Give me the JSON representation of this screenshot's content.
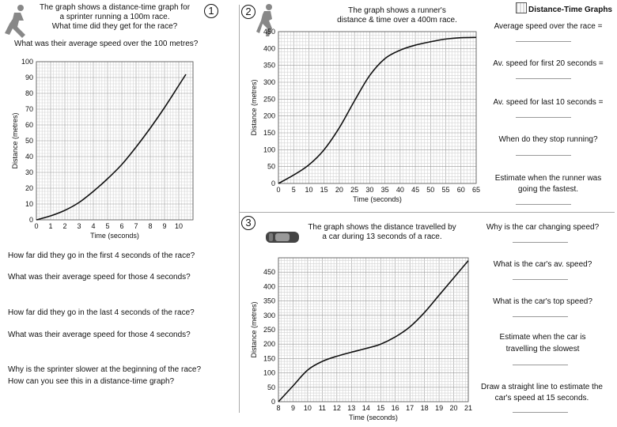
{
  "header": {
    "title": "Distance-Time Graphs",
    "icon": "calculator-icon"
  },
  "q1": {
    "number": "1",
    "intro": [
      "The graph shows a distance-time graph for",
      "a sprinter running a 100m race.",
      "What time did they get for the race?"
    ],
    "q_avg": "What was their average speed over the 100 metres?",
    "questions": [
      "How far did they go in the first 4 seconds of the race?",
      "What was their average speed for those 4 seconds?",
      "How far did they go in the last 4 seconds of the race?",
      "What was their average speed for those 4 seconds?",
      "Why is the sprinter slower at the beginning of the race?",
      "How can you see this in a distance-time graph?"
    ],
    "chart_data": {
      "type": "line",
      "xlabel": "Time (seconds)",
      "ylabel": "Distance (metres)",
      "xlim": [
        0,
        11
      ],
      "ylim": [
        0,
        100
      ],
      "xticks": [
        "0",
        "1",
        "2",
        "3",
        "4",
        "5",
        "6",
        "7",
        "8",
        "9",
        "10"
      ],
      "yticks": [
        "0",
        "10",
        "20",
        "30",
        "40",
        "50",
        "60",
        "70",
        "80",
        "90",
        "100"
      ],
      "x": [
        0,
        1,
        2,
        3,
        4,
        5,
        6,
        7,
        8,
        9,
        10,
        10.5
      ],
      "y": [
        0,
        2.5,
        6,
        11,
        18,
        26,
        35,
        46,
        58,
        71,
        85,
        92
      ]
    }
  },
  "q2": {
    "number": "2",
    "intro": [
      "The graph shows a runner's",
      "distance & time over a 400m race."
    ],
    "questions": [
      "Average speed over the race =",
      "Av. speed for first 20 seconds =",
      "Av. speed for last 10 seconds =",
      "When do they stop running?",
      "Estimate when the runner was",
      "going the fastest."
    ],
    "chart_data": {
      "type": "line",
      "xlabel": "Time (seconds)",
      "ylabel": "Distance (metres)",
      "xlim": [
        0,
        65
      ],
      "ylim": [
        0,
        450
      ],
      "xticks": [
        "0",
        "5",
        "10",
        "15",
        "20",
        "25",
        "30",
        "35",
        "40",
        "45",
        "50",
        "55",
        "60",
        "65"
      ],
      "yticks": [
        "0",
        "50",
        "100",
        "150",
        "200",
        "250",
        "300",
        "350",
        "400",
        "450"
      ],
      "x": [
        0,
        5,
        10,
        15,
        20,
        25,
        30,
        35,
        40,
        45,
        50,
        55,
        60,
        65
      ],
      "y": [
        0,
        25,
        55,
        100,
        165,
        245,
        320,
        370,
        395,
        410,
        420,
        428,
        432,
        433
      ]
    }
  },
  "q3": {
    "number": "3",
    "intro": [
      "The graph shows the distance travelled by",
      "a car during 13 seconds of a race."
    ],
    "questions": [
      "Why is the car changing speed?",
      "What is the car's av. speed?",
      "What is the car's top speed?",
      "Estimate when the car is",
      "travelling the slowest",
      "Draw a straight line to estimate the",
      "car's speed at 15 seconds."
    ],
    "chart_data": {
      "type": "line",
      "xlabel": "Time (seconds)",
      "ylabel": "Distance (metres)",
      "xlim": [
        8,
        21
      ],
      "ylim": [
        0,
        500
      ],
      "xticks": [
        "8",
        "9",
        "10",
        "11",
        "12",
        "13",
        "14",
        "15",
        "16",
        "17",
        "18",
        "19",
        "20",
        "21"
      ],
      "yticks": [
        "0",
        "50",
        "100",
        "150",
        "200",
        "250",
        "300",
        "350",
        "400",
        "450"
      ],
      "x": [
        8,
        9,
        10,
        11,
        12,
        13,
        14,
        15,
        16,
        17,
        18,
        19,
        20,
        21
      ],
      "y": [
        0,
        55,
        110,
        140,
        158,
        172,
        185,
        200,
        225,
        260,
        310,
        370,
        430,
        490
      ]
    }
  }
}
